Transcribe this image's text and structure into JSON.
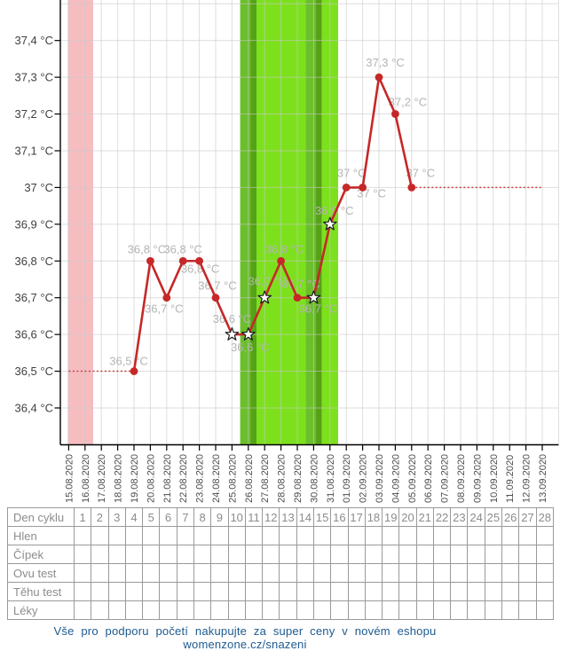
{
  "chart_data": {
    "type": "line",
    "title": "",
    "xlabel": "",
    "ylabel": "",
    "unit": "°C",
    "grid": true,
    "y_range_displayed": [
      36.4,
      37.4
    ],
    "y_ticks": [
      {
        "label": "37,4 °C",
        "value": 37.4
      },
      {
        "label": "37,3 °C",
        "value": 37.3
      },
      {
        "label": "37,2 °C",
        "value": 37.2
      },
      {
        "label": "37,1 °C",
        "value": 37.1
      },
      {
        "label": "37 °C",
        "value": 37.0
      },
      {
        "label": "36,9 °C",
        "value": 36.9
      },
      {
        "label": "36,8 °C",
        "value": 36.8
      },
      {
        "label": "36,7 °C",
        "value": 36.7
      },
      {
        "label": "36,6 °C",
        "value": 36.6
      },
      {
        "label": "36,5 °C",
        "value": 36.5
      },
      {
        "label": "36,4 °C",
        "value": 36.4
      }
    ],
    "x_dates": [
      "15.08.2020",
      "16.08.2020",
      "17.08.2020",
      "18.08.2020",
      "19.08.2020",
      "20.08.2020",
      "21.08.2020",
      "22.08.2020",
      "23.08.2020",
      "24.08.2020",
      "25.08.2020",
      "26.08.2020",
      "27.08.2020",
      "28.08.2020",
      "29.08.2020",
      "30.08.2020",
      "31.08.2020",
      "01.09.2020",
      "02.09.2020",
      "03.09.2020",
      "04.09.2020",
      "05.09.2020",
      "06.09.2020",
      "07.09.2020",
      "08.09.2020",
      "09.09.2020",
      "10.09.2020",
      "11.09.2020",
      "12.09.2020",
      "13.09.2020"
    ],
    "series": [
      {
        "name": "basal-temperature",
        "color": "#c62828",
        "points": [
          {
            "date": "19.08.2020",
            "temp": 36.5,
            "marker": "dot",
            "label": "36,5 °C",
            "label_dx": -6,
            "label_dy": -7
          },
          {
            "date": "20.08.2020",
            "temp": 36.8,
            "marker": "dot",
            "label": "36,8 °C",
            "label_dx": -4,
            "label_dy": -9
          },
          {
            "date": "21.08.2020",
            "temp": 36.7,
            "marker": "dot",
            "label": "36,7 °C",
            "label_dx": -3,
            "label_dy": 17
          },
          {
            "date": "22.08.2020",
            "temp": 36.8,
            "marker": "dot",
            "label": "36,8 °C",
            "label_dx": 0,
            "label_dy": -9
          },
          {
            "date": "23.08.2020",
            "temp": 36.8,
            "marker": "dot",
            "label": "36,8 °C",
            "label_dx": 1,
            "label_dy": 13
          },
          {
            "date": "24.08.2020",
            "temp": 36.7,
            "marker": "dot",
            "label": "36,7 °C",
            "label_dx": 2,
            "label_dy": -9
          },
          {
            "date": "25.08.2020",
            "temp": 36.6,
            "marker": "star",
            "label": "36,6 °C",
            "label_dx": 0,
            "label_dy": -13
          },
          {
            "date": "26.08.2020",
            "temp": 36.6,
            "marker": "star",
            "label": "36,6 °C",
            "label_dx": 2,
            "label_dy": 19
          },
          {
            "date": "27.08.2020",
            "temp": 36.7,
            "marker": "star",
            "label": "36,7 °C",
            "label_dx": 3,
            "label_dy": -14
          },
          {
            "date": "28.08.2020",
            "temp": 36.8,
            "marker": "dot",
            "label": "36,8 °C",
            "label_dx": 4,
            "label_dy": -9
          },
          {
            "date": "29.08.2020",
            "temp": 36.7,
            "marker": "dot",
            "label": "36,7 °C",
            "label_dx": 4,
            "label_dy": -11
          },
          {
            "date": "30.08.2020",
            "temp": 36.7,
            "marker": "star",
            "label": "36,7 °C",
            "label_dx": 5,
            "label_dy": 17
          },
          {
            "date": "31.08.2020",
            "temp": 36.9,
            "marker": "star",
            "label": "36,9 °C",
            "label_dx": 5,
            "label_dy": -11
          },
          {
            "date": "01.09.2020",
            "temp": 37.0,
            "marker": "dot",
            "label": "37 °C",
            "label_dx": 6,
            "label_dy": -12
          },
          {
            "date": "02.09.2020",
            "temp": 37.0,
            "marker": "dot",
            "label": "37 °C",
            "label_dx": 10,
            "label_dy": 11
          },
          {
            "date": "03.09.2020",
            "temp": 37.3,
            "marker": "dot",
            "label": "37,3 °C",
            "label_dx": 7,
            "label_dy": -12
          },
          {
            "date": "04.09.2020",
            "temp": 37.2,
            "marker": "dot",
            "label": "37,2 °C",
            "label_dx": 14,
            "label_dy": -9
          },
          {
            "date": "05.09.2020",
            "temp": 37.0,
            "marker": "dot",
            "label": "37 °C",
            "label_dx": 10,
            "label_dy": -12
          }
        ]
      }
    ],
    "dashed_segments": [
      {
        "from_date": "15.08.2020",
        "to_date": "19.08.2020",
        "temp": 36.5
      },
      {
        "from_date": "05.09.2020",
        "to_date": "13.09.2020",
        "temp": 37.0
      }
    ],
    "bands": [
      {
        "label": "menstruation",
        "from": "15.08.2020",
        "to": "16.08.2020",
        "color": "#f6bdc1",
        "start_at_tick": true
      },
      {
        "label": "fertile-day",
        "from": "26.08.2020",
        "to": "26.08.2020",
        "color": "#6bbf2b"
      },
      {
        "label": "fertile-day-edge",
        "from": "26.08.2020",
        "to": "26.08.2020",
        "color": "#55a117",
        "edge": "right"
      },
      {
        "label": "ovulation-window",
        "from": "27.08.2020",
        "to": "29.08.2020",
        "color": "#7de01d"
      },
      {
        "label": "fertile-day",
        "from": "30.08.2020",
        "to": "30.08.2020",
        "color": "#6bbf2b"
      },
      {
        "label": "fertile-day-edge",
        "from": "30.08.2020",
        "to": "30.08.2020",
        "color": "#55a117",
        "edge": "right"
      },
      {
        "label": "fertile-day",
        "from": "31.08.2020",
        "to": "31.08.2020",
        "color": "#7de01d"
      }
    ],
    "colors": {
      "line": "#c62828",
      "grid": "#c8c8c8",
      "axis": "#000000",
      "point_label": "#b4b4b4",
      "y_label": "#3f3f3f",
      "x_label": "#4c4c4c",
      "star_fill": "#ffffff",
      "star_stroke": "#1a1a1a"
    }
  },
  "table": {
    "rows": [
      "Den cyklu",
      "Hlen",
      "Čípek",
      "Ovu test",
      "Těhu test",
      "Léky"
    ],
    "cycle_days": [
      "1",
      "2",
      "3",
      "4",
      "5",
      "6",
      "7",
      "8",
      "9",
      "10",
      "11",
      "12",
      "13",
      "14",
      "15",
      "16",
      "17",
      "18",
      "19",
      "20",
      "21",
      "22",
      "23",
      "24",
      "25",
      "26",
      "27",
      "28"
    ]
  },
  "footer": {
    "promo_text": "Vše pro podporu početí nakupujte za super ceny v novém eshopu womenzone.cz/snazeni",
    "link_color": "#1d5a8f"
  }
}
